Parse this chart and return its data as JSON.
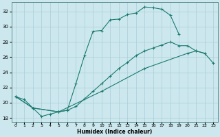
{
  "xlabel": "Humidex (Indice chaleur)",
  "bg_color": "#cce8ee",
  "line_color": "#1a7a6e",
  "grid_color": "#aaccd8",
  "xlim": [
    -0.5,
    23.5
  ],
  "ylim": [
    17.5,
    33.2
  ],
  "yticks": [
    18,
    20,
    22,
    24,
    26,
    28,
    30,
    32
  ],
  "xticks": [
    0,
    1,
    2,
    3,
    4,
    5,
    6,
    7,
    8,
    9,
    10,
    11,
    12,
    13,
    14,
    15,
    16,
    17,
    18,
    19,
    20,
    21,
    22,
    23
  ],
  "upper_x": [
    0,
    1,
    2,
    3,
    4,
    5,
    6,
    7,
    8,
    9,
    10,
    11,
    12,
    13,
    14,
    15,
    16,
    17,
    18,
    19
  ],
  "upper_y": [
    20.8,
    20.4,
    19.3,
    18.2,
    18.5,
    18.8,
    19.0,
    22.5,
    26.2,
    29.4,
    29.5,
    30.9,
    31.0,
    31.6,
    31.8,
    32.6,
    32.5,
    32.3,
    31.5,
    29.0
  ],
  "mid_x": [
    0,
    2,
    5,
    6,
    7,
    8,
    9,
    10,
    11,
    12,
    13,
    14,
    15,
    16,
    17,
    18,
    19,
    20,
    21,
    22
  ],
  "mid_y": [
    20.8,
    19.3,
    18.8,
    19.0,
    19.5,
    20.5,
    21.5,
    22.5,
    23.5,
    24.5,
    25.3,
    26.2,
    26.8,
    27.2,
    27.6,
    28.0,
    27.5,
    27.5,
    26.8,
    26.5
  ],
  "low_x": [
    0,
    2,
    5,
    10,
    15,
    20,
    21,
    22,
    23
  ],
  "low_y": [
    20.8,
    19.3,
    18.8,
    21.5,
    24.5,
    26.5,
    26.8,
    26.5,
    25.2
  ]
}
